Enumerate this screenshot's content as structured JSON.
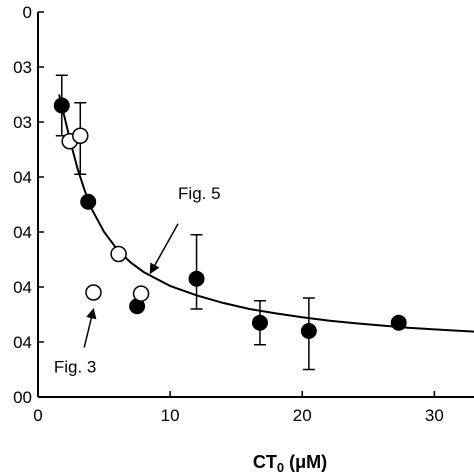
{
  "chart_data": {
    "type": "scatter",
    "xlim": [
      0,
      33
    ],
    "ylim": [
      0,
      7
    ],
    "x_ticks": [
      0,
      10,
      20,
      30
    ],
    "x_tick_labels": [
      "0",
      "10",
      "20",
      "30"
    ],
    "y_ticks": [
      0,
      1,
      2,
      3,
      4,
      5,
      6,
      7
    ],
    "y_tick_labels": [
      "00",
      "04",
      "04",
      "04",
      "04",
      "03",
      "03",
      "0"
    ],
    "xlabel_main": "CT",
    "xlabel_sub": "0",
    "xlabel_unit": " (μM)",
    "ylabel": "",
    "grid": false,
    "series": [
      {
        "marker": "filled-circle",
        "color": "#000000",
        "points": [
          {
            "x": 1.8,
            "y": 5.3,
            "err_hi": 0.55,
            "err_lo": 0.55
          },
          {
            "x": 3.8,
            "y": 3.55
          },
          {
            "x": 7.5,
            "y": 1.65
          },
          {
            "x": 12.0,
            "y": 2.15,
            "err_hi": 0.8,
            "err_lo": 0.55
          },
          {
            "x": 16.8,
            "y": 1.35,
            "err_hi": 0.4,
            "err_lo": 0.4
          },
          {
            "x": 20.5,
            "y": 1.2,
            "err_hi": 0.6,
            "err_lo": 0.7
          },
          {
            "x": 27.3,
            "y": 1.35
          }
        ]
      },
      {
        "marker": "open-circle",
        "color": "#000000",
        "points": [
          {
            "x": 2.4,
            "y": 4.65
          },
          {
            "x": 3.2,
            "y": 4.75,
            "err_hi": 0.6,
            "err_lo": 0.7
          },
          {
            "x": 4.2,
            "y": 1.9
          },
          {
            "x": 6.1,
            "y": 2.6
          },
          {
            "x": 7.8,
            "y": 1.88
          }
        ]
      }
    ],
    "fit_curve": [
      {
        "x": 1.6,
        "y": 5.5
      },
      {
        "x": 2.0,
        "y": 5.1
      },
      {
        "x": 2.5,
        "y": 4.6
      },
      {
        "x": 3.0,
        "y": 4.15
      },
      {
        "x": 3.5,
        "y": 3.78
      },
      {
        "x": 4.0,
        "y": 3.45
      },
      {
        "x": 5.0,
        "y": 3.0
      },
      {
        "x": 6.0,
        "y": 2.68
      },
      {
        "x": 7.0,
        "y": 2.45
      },
      {
        "x": 8.0,
        "y": 2.27
      },
      {
        "x": 10.0,
        "y": 2.02
      },
      {
        "x": 12.0,
        "y": 1.85
      },
      {
        "x": 14.0,
        "y": 1.71
      },
      {
        "x": 16.0,
        "y": 1.6
      },
      {
        "x": 18.0,
        "y": 1.52
      },
      {
        "x": 20.0,
        "y": 1.45
      },
      {
        "x": 22.0,
        "y": 1.39
      },
      {
        "x": 24.0,
        "y": 1.34
      },
      {
        "x": 26.0,
        "y": 1.3
      },
      {
        "x": 28.0,
        "y": 1.26
      },
      {
        "x": 30.0,
        "y": 1.23
      },
      {
        "x": 33.0,
        "y": 1.19
      }
    ],
    "annotations": [
      {
        "text": "Fig. 5",
        "label_x": 10.6,
        "label_y": 3.6,
        "arrow_from": [
          10.6,
          3.15
        ],
        "arrow_to": [
          8.5,
          2.25
        ]
      },
      {
        "text": "Fig. 3",
        "label_x": 1.2,
        "label_y": 0.45,
        "arrow_from": [
          3.5,
          0.9
        ],
        "arrow_to": [
          4.2,
          1.6
        ]
      }
    ]
  }
}
